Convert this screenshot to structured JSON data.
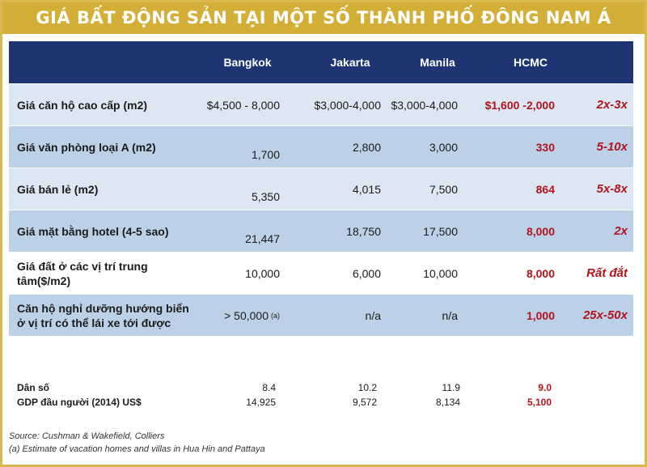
{
  "title": "GIÁ BẤT ĐỘNG SẢN TẠI MỘT SỐ THÀNH PHỐ ĐÔNG NAM Á",
  "header": {
    "bangkok": "Bangkok",
    "jakarta": "Jakarta",
    "manila": "Manila",
    "hcmc": "HCMC"
  },
  "rows": [
    {
      "label": "Giá căn hộ cao cấp (m2)",
      "bangkok": "$4,500 - 8,000",
      "jakarta": "$3,000-4,000",
      "manila": "$3,000-4,000",
      "hcmc": "$1,600 -2,000",
      "multiple": "2x-3x"
    },
    {
      "label": "Giá văn phòng loại A (m2)",
      "bangkok": "1,700",
      "jakarta": "2,800",
      "manila": "3,000",
      "hcmc": "330",
      "multiple": "5-10x"
    },
    {
      "label": "Giá bán lẻ (m2)",
      "bangkok": "5,350",
      "jakarta": "4,015",
      "manila": "7,500",
      "hcmc": "864",
      "multiple": "5x-8x"
    },
    {
      "label": "Giá mặt bằng hotel (4-5 sao)",
      "bangkok": "21,447",
      "jakarta": "18,750",
      "manila": "17,500",
      "hcmc": "8,000",
      "multiple": "2x"
    },
    {
      "label": "Giá đất ở các vị trí trung tâm($/m2)",
      "bangkok": "10,000",
      "jakarta": "6,000",
      "manila": "10,000",
      "hcmc": "8,000",
      "multiple": "Rất đắt"
    },
    {
      "label": "Căn hộ nghỉ dưỡng hướng biển ở vị trí có thể lái xe tới được",
      "bangkok": "> 50,000",
      "bangkok_note": "(a)",
      "jakarta": "n/a",
      "manila": "n/a",
      "hcmc": "1,000",
      "multiple": "25x-50x"
    }
  ],
  "footer": [
    {
      "label": "Dân số",
      "bangkok": "8.4",
      "jakarta": "10.2",
      "manila": "11.9",
      "hcmc": "9.0"
    },
    {
      "label": "GDP đầu người (2014) US$",
      "bangkok": "14,925",
      "jakarta": "9,572",
      "manila": "8,134",
      "hcmc": "5,100"
    }
  ],
  "sources": {
    "line1": "Source: Cushman & Wakefield, Colliers",
    "line2": "(a) Estimate of vacation homes and villas in Hua Hin and Pattaya"
  }
}
